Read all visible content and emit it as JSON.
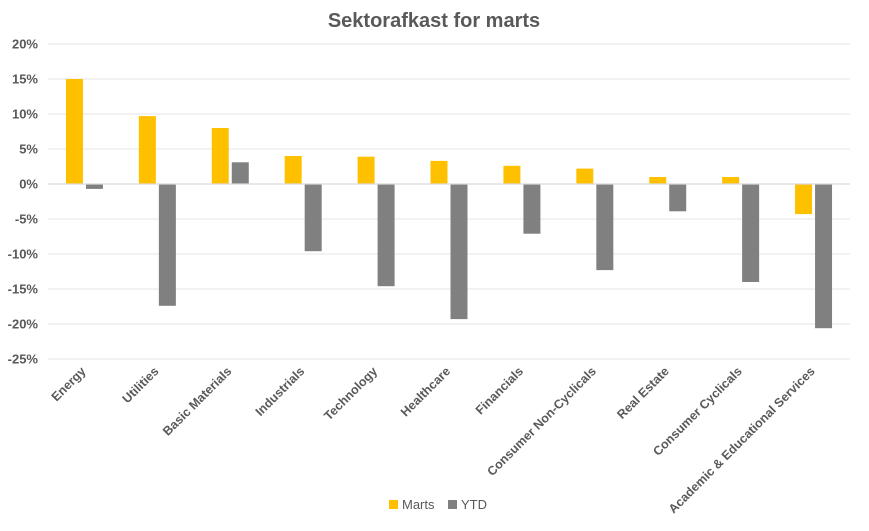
{
  "chart_data": {
    "type": "bar",
    "title": "Sektorafkast for marts",
    "categories": [
      "Energy",
      "Utilities",
      "Basic Materials",
      "Industrials",
      "Technology",
      "Healthcare",
      "Financials",
      "Consumer Non-Cyclicals",
      "Real Estate",
      "Consumer Cyclicals",
      "Academic & Educational Services"
    ],
    "series": [
      {
        "name": "Marts",
        "color": "#FFC000",
        "values": [
          15.0,
          9.7,
          8.0,
          4.0,
          3.9,
          3.3,
          2.6,
          2.2,
          1.0,
          1.0,
          -4.3
        ]
      },
      {
        "name": "YTD",
        "color": "#808080",
        "values": [
          -0.7,
          -17.4,
          3.1,
          -9.6,
          -14.6,
          -19.3,
          -7.1,
          -12.3,
          -3.9,
          -14.0,
          -20.6
        ]
      }
    ],
    "ylim": [
      -25,
      20
    ],
    "yticks": [
      20,
      15,
      10,
      5,
      0,
      -5,
      -10,
      -15,
      -20,
      -25
    ],
    "ytick_labels": [
      "20%",
      "15%",
      "10%",
      "5%",
      "0%",
      "-5%",
      "-10%",
      "-15%",
      "-20%",
      "-25%"
    ],
    "grid": true,
    "legend_position": "bottom"
  }
}
